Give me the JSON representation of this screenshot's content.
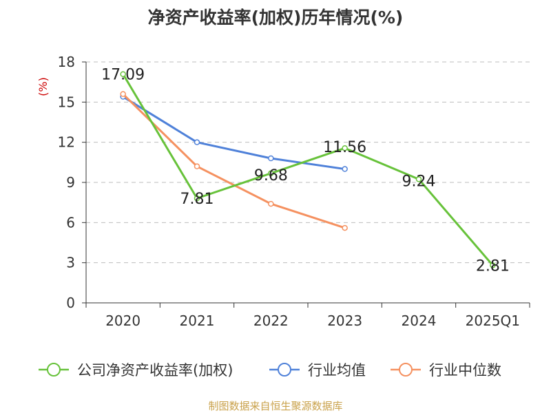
{
  "chart_data": {
    "type": "line",
    "title": "净资产收益率(加权)历年情况(%)",
    "ylabel": "(%)",
    "categories": [
      "2020",
      "2021",
      "2022",
      "2023",
      "2024",
      "2025Q1"
    ],
    "yticks": [
      "0",
      "3",
      "6",
      "9",
      "12",
      "15",
      "18"
    ],
    "ylim": [
      0,
      18
    ],
    "grid": true,
    "legend_position": "bottom",
    "series": [
      {
        "name": "公司净资产收益率(加权)",
        "color": "#67c23a",
        "values": [
          17.09,
          7.81,
          9.68,
          11.56,
          9.24,
          2.81
        ],
        "labels": [
          "17.09",
          "7.81",
          "9.68",
          "11.56",
          "9.24",
          "2.81"
        ]
      },
      {
        "name": "行业均值",
        "color": "#4f81d9",
        "values": [
          15.4,
          12.0,
          10.8,
          10.0,
          null,
          null
        ]
      },
      {
        "name": "行业中位数",
        "color": "#f59160",
        "values": [
          15.6,
          10.2,
          7.4,
          5.6,
          null,
          null
        ]
      }
    ]
  },
  "source_text": "制图数据来自恒生聚源数据库"
}
